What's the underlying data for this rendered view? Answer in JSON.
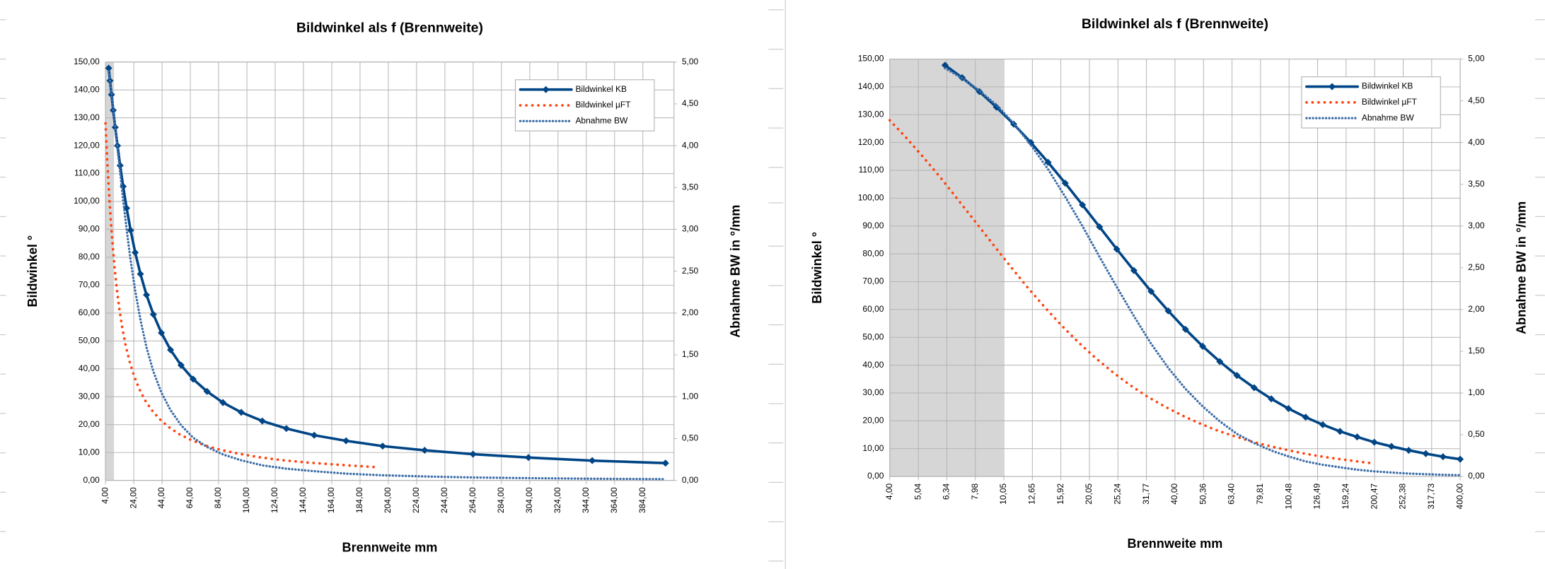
{
  "chart_data": [
    {
      "type": "line",
      "title": "Bildwinkel als f (Brennweite)",
      "x_label": "Brennweite mm",
      "y_label": "Bildwinkel °",
      "y2_label": "Abnahme BW in °/mm",
      "xlim": [
        4,
        406
      ],
      "log_x": false,
      "ylim": [
        0,
        150
      ],
      "y2lim": [
        0,
        5
      ],
      "grid": true,
      "legend": "top-right",
      "highlight_x": [
        4,
        10
      ],
      "xticks": [
        {
          "value": 4,
          "label": "4,00"
        },
        {
          "value": 24,
          "label": "24,00"
        },
        {
          "value": 44,
          "label": "44,00"
        },
        {
          "value": 64,
          "label": "64,00"
        },
        {
          "value": 84,
          "label": "84,00"
        },
        {
          "value": 104,
          "label": "104,00"
        },
        {
          "value": 124,
          "label": "124,00"
        },
        {
          "value": 144,
          "label": "144,00"
        },
        {
          "value": 164,
          "label": "164,00"
        },
        {
          "value": 184,
          "label": "184,00"
        },
        {
          "value": 204,
          "label": "204,00"
        },
        {
          "value": 224,
          "label": "224,00"
        },
        {
          "value": 244,
          "label": "244,00"
        },
        {
          "value": 264,
          "label": "264,00"
        },
        {
          "value": 284,
          "label": "284,00"
        },
        {
          "value": 304,
          "label": "304,00"
        },
        {
          "value": 324,
          "label": "324,00"
        },
        {
          "value": 344,
          "label": "344,00"
        },
        {
          "value": 364,
          "label": "364,00"
        },
        {
          "value": 384,
          "label": "384,00"
        }
      ],
      "yticks": [
        {
          "value": 0,
          "label": "0,00"
        },
        {
          "value": 10,
          "label": "10,00"
        },
        {
          "value": 20,
          "label": "20,00"
        },
        {
          "value": 30,
          "label": "30,00"
        },
        {
          "value": 40,
          "label": "40,00"
        },
        {
          "value": 50,
          "label": "50,00"
        },
        {
          "value": 60,
          "label": "60,00"
        },
        {
          "value": 70,
          "label": "70,00"
        },
        {
          "value": 80,
          "label": "80,00"
        },
        {
          "value": 90,
          "label": "90,00"
        },
        {
          "value": 100,
          "label": "100,00"
        },
        {
          "value": 110,
          "label": "110,00"
        },
        {
          "value": 120,
          "label": "120,00"
        },
        {
          "value": 130,
          "label": "130,00"
        },
        {
          "value": 140,
          "label": "140,00"
        },
        {
          "value": 150,
          "label": "150,00"
        }
      ],
      "y2ticks": [
        {
          "value": 0,
          "label": "0,00"
        },
        {
          "value": 0.5,
          "label": "0,50"
        },
        {
          "value": 1,
          "label": "1,00"
        },
        {
          "value": 1.5,
          "label": "1,50"
        },
        {
          "value": 2,
          "label": "2,00"
        },
        {
          "value": 2.5,
          "label": "2,50"
        },
        {
          "value": 3,
          "label": "3,00"
        },
        {
          "value": 3.5,
          "label": "3,50"
        },
        {
          "value": 4,
          "label": "4,00"
        },
        {
          "value": 4.5,
          "label": "4,50"
        },
        {
          "value": 5,
          "label": "5,00"
        }
      ],
      "series": [
        {
          "name": "Bildwinkel KB",
          "color": "#004586",
          "style": "solid-markers",
          "axis": "y",
          "x": [
            6.25,
            7.18,
            8.25,
            9.47,
            10.88,
            12.5,
            14.36,
            16.49,
            18.95,
            21.76,
            25,
            28.72,
            32.99,
            37.89,
            43.53,
            50,
            57.43,
            65.98,
            75.79,
            87.06,
            100,
            114.9,
            131.9,
            151.6,
            174.1,
            200,
            229.7,
            263.9,
            303.1,
            348.2,
            400
          ],
          "values": [
            147.8,
            143.3,
            138.3,
            132.7,
            126.6,
            120.0,
            112.9,
            105.4,
            97.6,
            89.7,
            81.7,
            74.0,
            66.5,
            59.5,
            52.9,
            46.8,
            41.3,
            36.3,
            31.9,
            27.9,
            24.4,
            21.3,
            18.6,
            16.2,
            14.2,
            12.3,
            10.8,
            9.4,
            8.2,
            7.1,
            6.2
          ]
        },
        {
          "name": "Bildwinkel µFT",
          "color": "#ff420e",
          "style": "dotted-wide",
          "axis": "y",
          "x": [
            4,
            4.59,
            5.28,
            6.06,
            6.96,
            8,
            9.19,
            10.56,
            12.13,
            13.93,
            16,
            18.38,
            21.11,
            24.25,
            27.86,
            32,
            36.76,
            42.22,
            48.5,
            55.71,
            64,
            73.5,
            84.4,
            97,
            111.4,
            128,
            147,
            168.9,
            194
          ],
          "values": [
            128.0,
            121.5,
            114.4,
            107.1,
            99.3,
            91.4,
            83.5,
            75.7,
            68.1,
            61.0,
            54.3,
            48.1,
            42.5,
            37.4,
            32.8,
            28.7,
            25.2,
            22.0,
            19.2,
            16.7,
            14.6,
            12.7,
            11.1,
            9.7,
            8.4,
            7.3,
            6.4,
            5.6,
            4.8
          ]
        },
        {
          "name": "Abnahme BW",
          "color": "#3c6ea8",
          "style": "dotted",
          "axis": "y2",
          "x": [
            6.25,
            7.18,
            8.25,
            9.47,
            10.88,
            12.5,
            14.36,
            16.49,
            18.95,
            21.76,
            25,
            28.72,
            32.99,
            37.89,
            43.53,
            50,
            57.43,
            65.98,
            75.79,
            87.06,
            100,
            114.9,
            131.9,
            151.6,
            174.1,
            200,
            229.7,
            263.9,
            303.1,
            348.2,
            400
          ],
          "values": [
            4.89,
            4.77,
            4.62,
            4.45,
            4.23,
            3.97,
            3.68,
            3.35,
            3.0,
            2.63,
            2.27,
            1.92,
            1.59,
            1.3,
            1.05,
            0.84,
            0.66,
            0.51,
            0.4,
            0.31,
            0.24,
            0.18,
            0.14,
            0.11,
            0.081,
            0.061,
            0.047,
            0.035,
            0.027,
            0.02,
            0.015
          ]
        }
      ]
    },
    {
      "type": "line",
      "title": "Bildwinkel als f (Brennweite)",
      "x_label": "Brennweite mm",
      "y_label": "Bildwinkel °",
      "y2_label": "Abnahme BW in °/mm",
      "xlim": [
        4,
        400
      ],
      "log_x": true,
      "ylim": [
        0,
        150
      ],
      "y2lim": [
        0,
        5
      ],
      "grid": true,
      "legend": "top-right",
      "highlight_x": [
        4,
        10
      ],
      "xticks": [
        {
          "value": 4,
          "label": "4,00"
        },
        {
          "value": 5.04,
          "label": "5,04"
        },
        {
          "value": 6.34,
          "label": "6,34"
        },
        {
          "value": 7.98,
          "label": "7,98"
        },
        {
          "value": 10.05,
          "label": "10,05"
        },
        {
          "value": 12.65,
          "label": "12,65"
        },
        {
          "value": 15.92,
          "label": "15,92"
        },
        {
          "value": 20.05,
          "label": "20,05"
        },
        {
          "value": 25.24,
          "label": "25,24"
        },
        {
          "value": 31.77,
          "label": "31,77"
        },
        {
          "value": 40,
          "label": "40,00"
        },
        {
          "value": 50.36,
          "label": "50,36"
        },
        {
          "value": 63.4,
          "label": "63,40"
        },
        {
          "value": 79.81,
          "label": "79,81"
        },
        {
          "value": 100.48,
          "label": "100,48"
        },
        {
          "value": 126.49,
          "label": "126,49"
        },
        {
          "value": 159.24,
          "label": "159,24"
        },
        {
          "value": 200.47,
          "label": "200,47"
        },
        {
          "value": 252.38,
          "label": "252,38"
        },
        {
          "value": 317.73,
          "label": "317,73"
        },
        {
          "value": 400,
          "label": "400,00"
        }
      ],
      "yticks": [
        {
          "value": 0,
          "label": "0,00"
        },
        {
          "value": 10,
          "label": "10,00"
        },
        {
          "value": 20,
          "label": "20,00"
        },
        {
          "value": 30,
          "label": "30,00"
        },
        {
          "value": 40,
          "label": "40,00"
        },
        {
          "value": 50,
          "label": "50,00"
        },
        {
          "value": 60,
          "label": "60,00"
        },
        {
          "value": 70,
          "label": "70,00"
        },
        {
          "value": 80,
          "label": "80,00"
        },
        {
          "value": 90,
          "label": "90,00"
        },
        {
          "value": 100,
          "label": "100,00"
        },
        {
          "value": 110,
          "label": "110,00"
        },
        {
          "value": 120,
          "label": "120,00"
        },
        {
          "value": 130,
          "label": "130,00"
        },
        {
          "value": 140,
          "label": "140,00"
        },
        {
          "value": 150,
          "label": "150,00"
        }
      ],
      "y2ticks": [
        {
          "value": 0,
          "label": "0,00"
        },
        {
          "value": 0.5,
          "label": "0,50"
        },
        {
          "value": 1,
          "label": "1,00"
        },
        {
          "value": 1.5,
          "label": "1,50"
        },
        {
          "value": 2,
          "label": "2,00"
        },
        {
          "value": 2.5,
          "label": "2,50"
        },
        {
          "value": 3,
          "label": "3,00"
        },
        {
          "value": 3.5,
          "label": "3,50"
        },
        {
          "value": 4,
          "label": "4,00"
        },
        {
          "value": 4.5,
          "label": "4,50"
        },
        {
          "value": 5,
          "label": "5,00"
        }
      ],
      "series": [
        {
          "name": "Bildwinkel KB",
          "color": "#004586",
          "style": "solid-markers",
          "axis": "y",
          "x": [
            6.25,
            7.18,
            8.25,
            9.47,
            10.88,
            12.5,
            14.36,
            16.49,
            18.95,
            21.76,
            25,
            28.72,
            32.99,
            37.89,
            43.53,
            50,
            57.43,
            65.98,
            75.79,
            87.06,
            100,
            114.9,
            131.9,
            151.6,
            174.1,
            200,
            229.7,
            263.9,
            303.1,
            348.2,
            400
          ],
          "values": [
            147.8,
            143.3,
            138.3,
            132.7,
            126.6,
            120.0,
            112.9,
            105.4,
            97.6,
            89.7,
            81.7,
            74.0,
            66.5,
            59.5,
            52.9,
            46.8,
            41.3,
            36.3,
            31.9,
            27.9,
            24.4,
            21.3,
            18.6,
            16.2,
            14.2,
            12.3,
            10.8,
            9.4,
            8.2,
            7.1,
            6.2
          ]
        },
        {
          "name": "Bildwinkel µFT",
          "color": "#ff420e",
          "style": "dotted-wide",
          "axis": "y",
          "x": [
            4,
            4.59,
            5.28,
            6.06,
            6.96,
            8,
            9.19,
            10.56,
            12.13,
            13.93,
            16,
            18.38,
            21.11,
            24.25,
            27.86,
            32,
            36.76,
            42.22,
            48.5,
            55.71,
            64,
            73.5,
            84.4,
            97,
            111.4,
            128,
            147,
            168.9,
            194
          ],
          "values": [
            128.0,
            121.5,
            114.4,
            107.1,
            99.3,
            91.4,
            83.5,
            75.7,
            68.1,
            61.0,
            54.3,
            48.1,
            42.5,
            37.4,
            32.8,
            28.7,
            25.2,
            22.0,
            19.2,
            16.7,
            14.6,
            12.7,
            11.1,
            9.7,
            8.4,
            7.3,
            6.4,
            5.6,
            4.8
          ]
        },
        {
          "name": "Abnahme BW",
          "color": "#3c6ea8",
          "style": "dotted",
          "axis": "y2",
          "x": [
            6.25,
            7.18,
            8.25,
            9.47,
            10.88,
            12.5,
            14.36,
            16.49,
            18.95,
            21.76,
            25,
            28.72,
            32.99,
            37.89,
            43.53,
            50,
            57.43,
            65.98,
            75.79,
            87.06,
            100,
            114.9,
            131.9,
            151.6,
            174.1,
            200,
            229.7,
            263.9,
            303.1,
            348.2,
            400
          ],
          "values": [
            4.89,
            4.77,
            4.62,
            4.45,
            4.23,
            3.97,
            3.68,
            3.35,
            3.0,
            2.63,
            2.27,
            1.92,
            1.59,
            1.3,
            1.05,
            0.84,
            0.66,
            0.51,
            0.4,
            0.31,
            0.24,
            0.18,
            0.14,
            0.11,
            0.081,
            0.061,
            0.047,
            0.035,
            0.027,
            0.02,
            0.015
          ]
        }
      ]
    }
  ]
}
